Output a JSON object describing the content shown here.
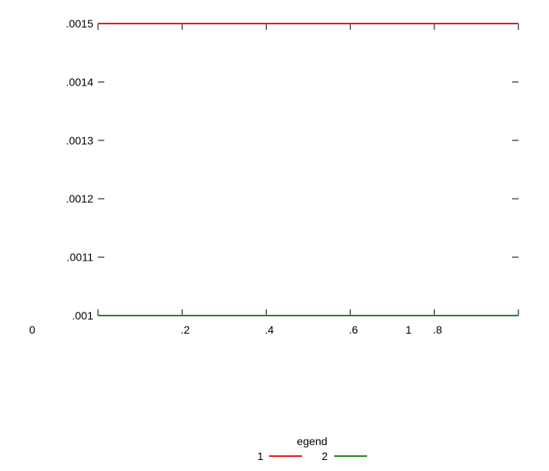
{
  "chart_data": {
    "type": "line",
    "title": "",
    "xlabel": "",
    "ylabel": "",
    "xlim": [
      0,
      1
    ],
    "ylim": [
      0.001,
      0.0015
    ],
    "grid": false,
    "x_ticks": [
      {
        "value": 0.2,
        "label": ".2"
      },
      {
        "value": 0.4,
        "label": ".4"
      },
      {
        "value": 0.6,
        "label": ".6"
      },
      {
        "value": 0.8,
        "label": ".8"
      }
    ],
    "y_ticks": [
      {
        "value": 0.001,
        "label": ".001"
      },
      {
        "value": 0.0011,
        "label": ".0011"
      },
      {
        "value": 0.0012,
        "label": ".0012"
      },
      {
        "value": 0.0013,
        "label": ".0013"
      },
      {
        "value": 0.0014,
        "label": ".0014"
      },
      {
        "value": 0.0015,
        "label": ".0015"
      }
    ],
    "extra_labels": [
      {
        "text": "0",
        "position": "bottom-left"
      },
      {
        "text": "1",
        "position": "bottom-right"
      }
    ],
    "series": [
      {
        "name": "1",
        "color": "#e8191b",
        "x": [
          0,
          1
        ],
        "y": [
          0.0015,
          0.0015
        ]
      },
      {
        "name": "2",
        "color": "#1f8a1f",
        "x": [
          0,
          1
        ],
        "y": [
          0.001,
          0.001
        ]
      }
    ],
    "legend": {
      "title": "egend",
      "position": "bottom-center"
    }
  }
}
